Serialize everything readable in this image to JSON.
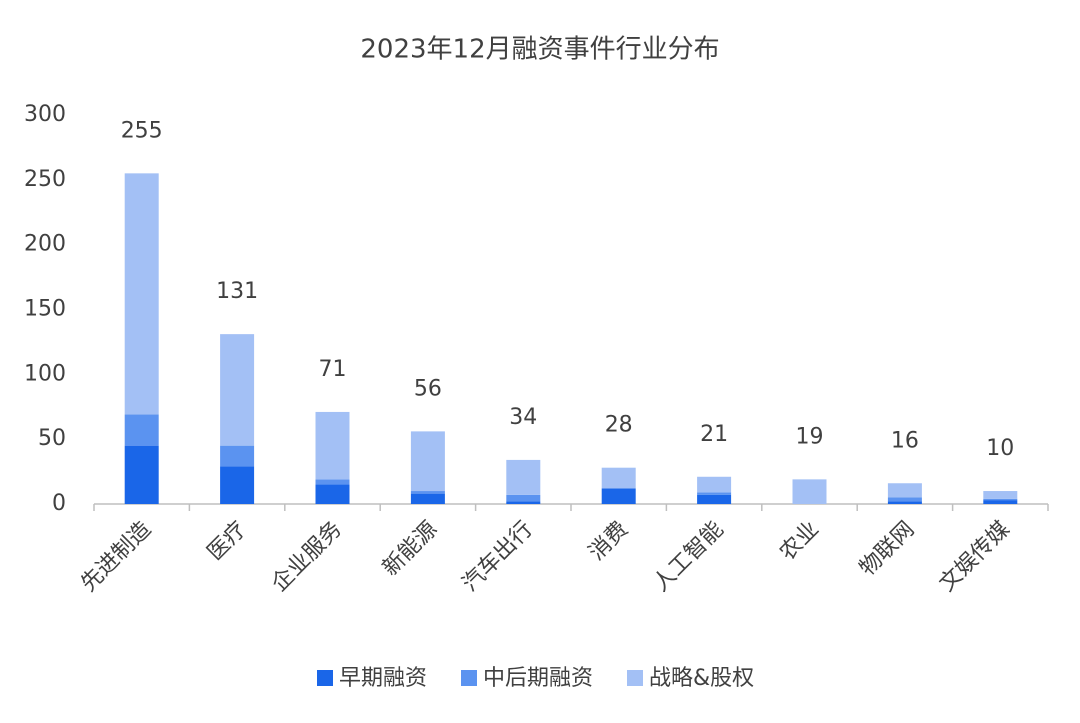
{
  "chart_data": {
    "type": "stacked_bar",
    "title": "2023年12月融资事件行业分布",
    "categories": [
      "先进制造",
      "医疗",
      "企业服务",
      "新能源",
      "汽车出行",
      "消费",
      "人工智能",
      "农业",
      "物联网",
      "文娱传媒"
    ],
    "series": [
      {
        "name": "早期融资",
        "color": "#1a66e8",
        "values": [
          45,
          29,
          15,
          8,
          2,
          12,
          7,
          0,
          2,
          3
        ]
      },
      {
        "name": "中后期融资",
        "color": "#5b93f0",
        "values": [
          24,
          16,
          4,
          2,
          5,
          0,
          2,
          0,
          3,
          1
        ]
      },
      {
        "name": "战略&股权",
        "color": "#a3c0f5",
        "values": [
          186,
          86,
          52,
          46,
          27,
          16,
          12,
          19,
          11,
          6
        ]
      }
    ],
    "totals": [
      255,
      131,
      71,
      56,
      34,
      28,
      21,
      19,
      16,
      10
    ],
    "ylim": [
      0,
      300
    ],
    "yticks": [
      0,
      50,
      100,
      150,
      200,
      250,
      300
    ],
    "grid": false,
    "legend": "bottom"
  }
}
